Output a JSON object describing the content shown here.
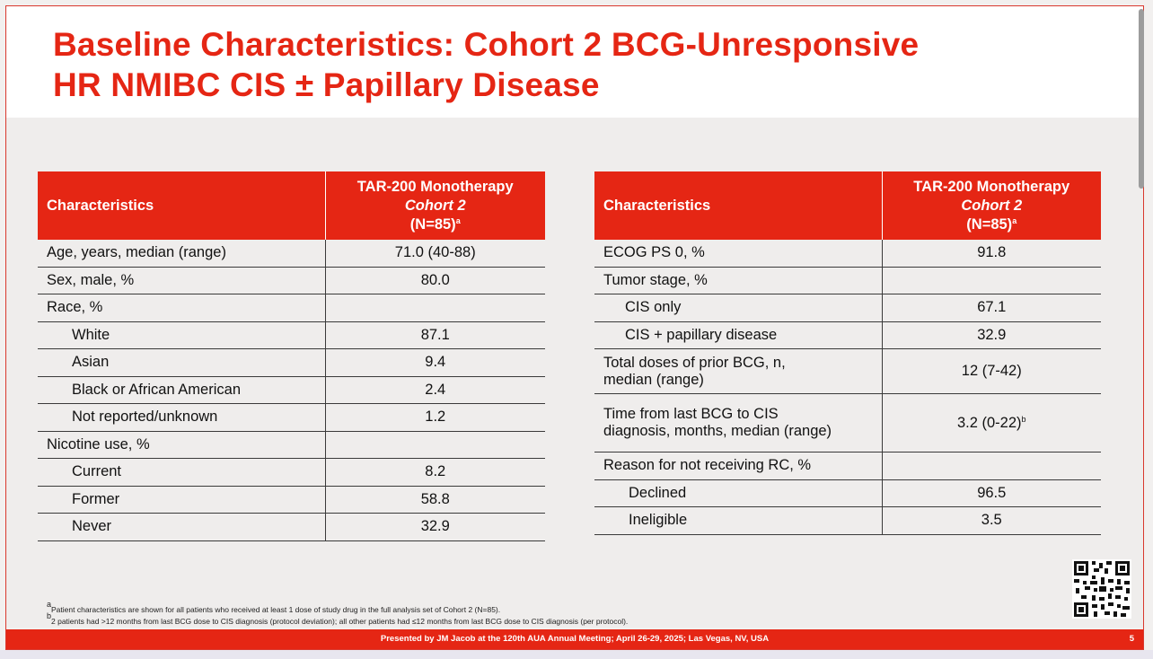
{
  "slide": {
    "title_line1": "Baseline Characteristics: Cohort 2 BCG-Unresponsive",
    "title_line2": "HR NMIBC CIS ± Papillary Disease",
    "accent_color": "#e52614"
  },
  "table_left": {
    "header": {
      "col1": "Characteristics",
      "col2_line1": "TAR-200 Monotherapy",
      "col2_line2": "Cohort 2",
      "col2_line3": "(N=85)",
      "col2_sup": "a"
    },
    "rows": [
      {
        "label": "Age, years, median (range)",
        "value": "71.0 (40-88)"
      },
      {
        "label": "Sex, male, %",
        "value": "80.0"
      },
      {
        "label": "Race, %",
        "value": ""
      },
      {
        "label": "White",
        "value": "87.1"
      },
      {
        "label": "Asian",
        "value": "9.4"
      },
      {
        "label": "Black or African American",
        "value": "2.4"
      },
      {
        "label": "Not reported/unknown",
        "value": "1.2"
      },
      {
        "label": "Nicotine use, %",
        "value": ""
      },
      {
        "label": "Current",
        "value": "8.2"
      },
      {
        "label": "Former",
        "value": "58.8"
      },
      {
        "label": "Never",
        "value": "32.9"
      }
    ]
  },
  "table_right": {
    "header": {
      "col1": "Characteristics",
      "col2_line1": "TAR-200 Monotherapy",
      "col2_line2": "Cohort 2",
      "col2_line3": "(N=85)",
      "col2_sup": "a"
    },
    "rows": [
      {
        "label": "ECOG PS 0, %",
        "value": "91.8"
      },
      {
        "label": "Tumor stage, %",
        "value": ""
      },
      {
        "label": "CIS only",
        "value": "67.1"
      },
      {
        "label": "CIS + papillary disease",
        "value": "32.9"
      },
      {
        "label_line1": "Total doses of prior BCG, n,",
        "label_line2": "median (range)",
        "value": "12 (7-42)"
      },
      {
        "label_line1": "Time from last BCG to CIS",
        "label_line2": "diagnosis, months, median (range)",
        "value": "3.2 (0-22)",
        "value_sup": "b"
      },
      {
        "label": "Reason for not receiving RC, %",
        "value": ""
      },
      {
        "label": "Declined",
        "value": "96.5"
      },
      {
        "label": "Ineligible",
        "value": "3.5"
      }
    ]
  },
  "footnotes": {
    "a_mark": "a",
    "a_text": "Patient characteristics are shown for all patients who received at least 1 dose of study drug in the full analysis set of Cohort 2 (N=85).",
    "b_mark": "b",
    "b_text": "2 patients had >12 months from last BCG dose to CIS diagnosis (protocol deviation); all other patients had ≤12 months from last BCG dose to CIS diagnosis (per protocol)."
  },
  "footer": {
    "presented_by": "Presented by JM Jacob at the 120th AUA Annual Meeting; April 26-29, 2025; Las Vegas, NV, USA",
    "page_number": "5"
  },
  "qr_code": {
    "icon": "qr-code-icon"
  }
}
